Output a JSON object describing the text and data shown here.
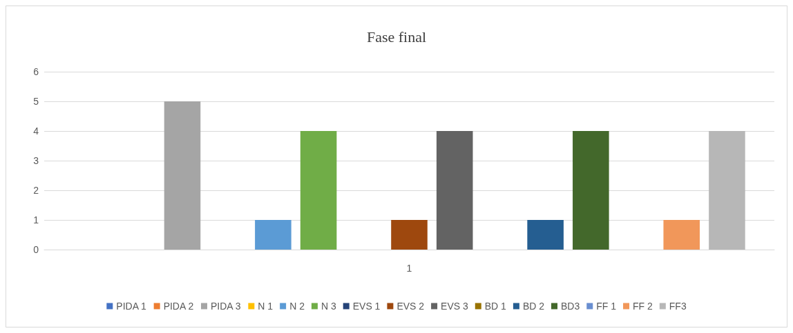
{
  "chart_data": {
    "type": "bar",
    "title": "Fase final",
    "categories": [
      "1"
    ],
    "ylim": [
      0,
      6
    ],
    "yticks": [
      0,
      1,
      2,
      3,
      4,
      5,
      6
    ],
    "grid": "y",
    "legend": "bottom",
    "series": [
      {
        "name": "PIDA 1",
        "color": "#4472c4",
        "values": [
          0
        ]
      },
      {
        "name": "PIDA 2",
        "color": "#ed7d31",
        "values": [
          0
        ]
      },
      {
        "name": "PIDA 3",
        "color": "#a5a5a5",
        "values": [
          5
        ]
      },
      {
        "name": "N 1",
        "color": "#ffc000",
        "values": [
          0
        ]
      },
      {
        "name": "N 2",
        "color": "#5b9bd5",
        "values": [
          1
        ]
      },
      {
        "name": "N 3",
        "color": "#70ad47",
        "values": [
          4
        ]
      },
      {
        "name": "EVS 1",
        "color": "#264478",
        "values": [
          0
        ]
      },
      {
        "name": "EVS 2",
        "color": "#9e480e",
        "values": [
          1
        ]
      },
      {
        "name": "EVS 3",
        "color": "#636363",
        "values": [
          4
        ]
      },
      {
        "name": "BD 1",
        "color": "#997300",
        "values": [
          0
        ]
      },
      {
        "name": "BD 2",
        "color": "#255e91",
        "values": [
          1
        ]
      },
      {
        "name": "BD3",
        "color": "#43682b",
        "values": [
          4
        ]
      },
      {
        "name": "FF 1",
        "color": "#698ed0",
        "values": [
          0
        ]
      },
      {
        "name": "FF 2",
        "color": "#f1975a",
        "values": [
          1
        ]
      },
      {
        "name": "FF3",
        "color": "#b7b7b7",
        "values": [
          4
        ]
      }
    ]
  }
}
